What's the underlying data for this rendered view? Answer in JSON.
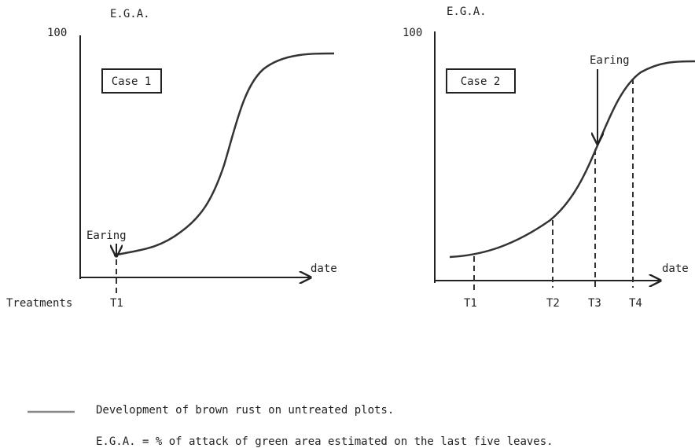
{
  "panels": [
    {
      "ylabel": "E.G.A.",
      "ytop": "100",
      "case": "Case 1",
      "earing": "Earing",
      "xlabel": "date",
      "treatments": [
        "T1"
      ]
    },
    {
      "ylabel": "E.G.A.",
      "ytop": "100",
      "case": "Case 2",
      "earing": "Earing",
      "xlabel": "date",
      "treatments": [
        "T1",
        "T2",
        "T3",
        "T4"
      ]
    }
  ],
  "treatments_label": "Treatments",
  "legend": "Development of brown rust on untreated plots.",
  "note": "E.G.A. = % of attack of green area estimated on the last five leaves."
}
